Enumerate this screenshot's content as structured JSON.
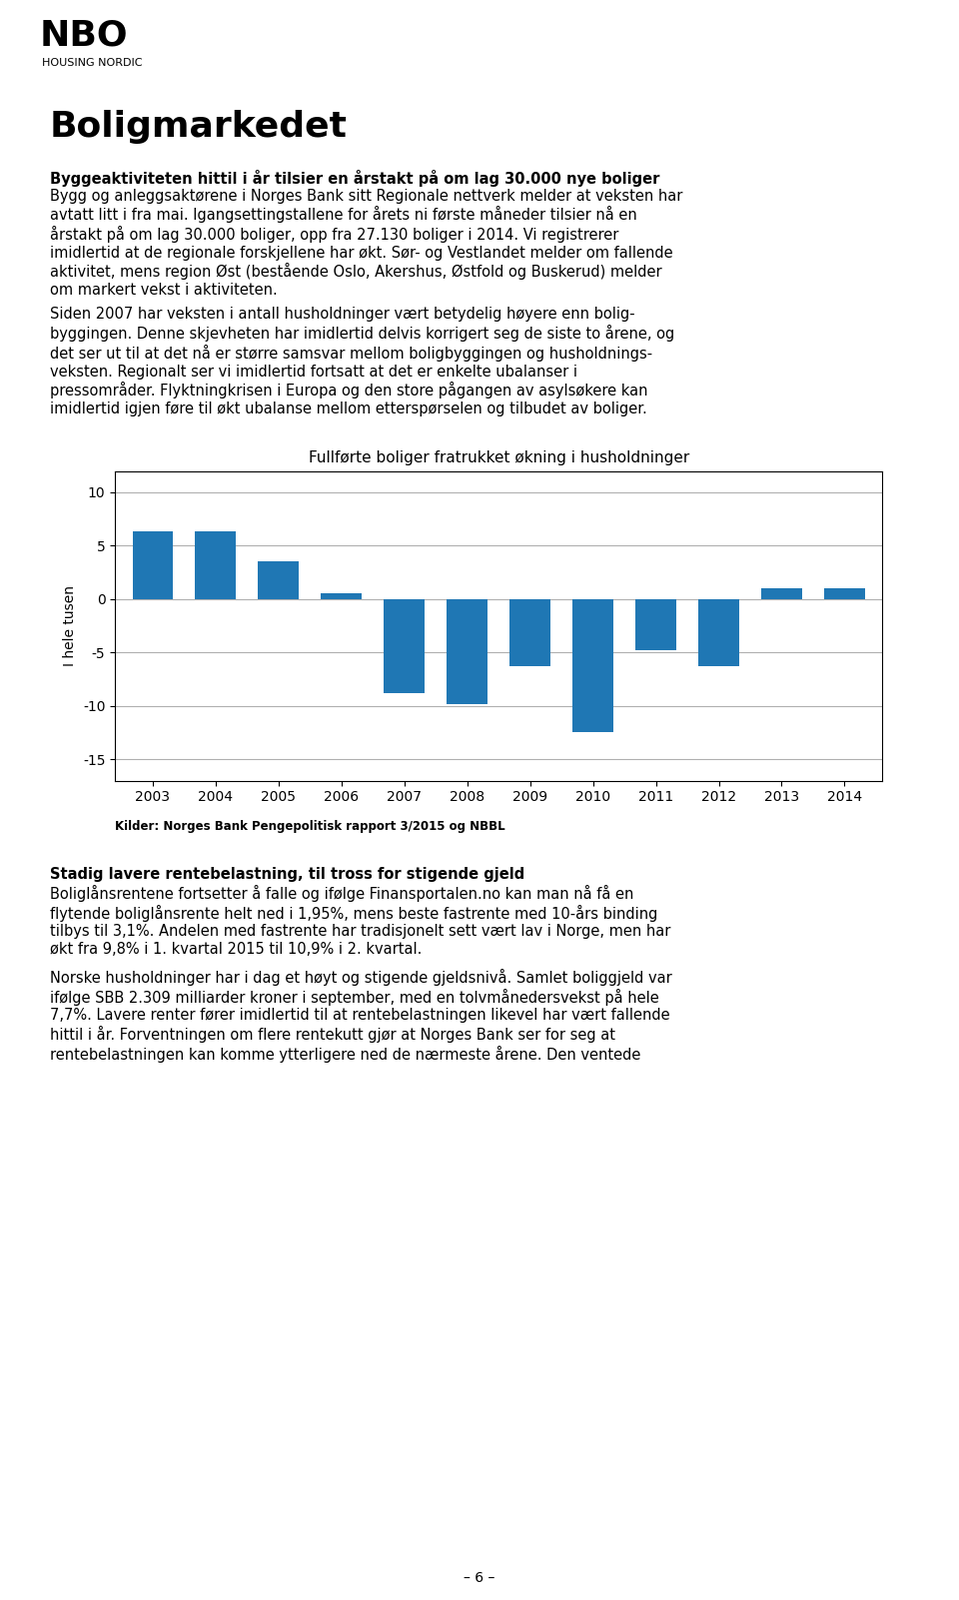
{
  "page": {
    "logo": [
      "NBO",
      "HOUSING NORDIC"
    ],
    "title": "Boligmarkedet",
    "paragraphs": [
      {
        "heading": "Byggeaktiviteten hittil i år tilsier en årstakt på om lag 30.000 nye boliger",
        "text": "Bygg og anleggsaktørene i Norges Bank sitt Regionale nettverk melder at veksten har\navtatt litt i fra mai. Igangsettingstallene for årets ni første måneder tilsier nå en\nårstakt på om lag 30.000 boliger, opp fra 27.130 boliger i 2014. Vi registrerer\nimidlertid at de regionale forskjellene har økt. Sør- og Vestlandet melder om fallende\naktivitet, mens region Øst (bestående Oslo, Akershus, Østfold og Buskerud) melder\nom markert vekst i aktiviteten."
      },
      {
        "text": "Siden 2007 har veksten i antall husholdninger vært betydelig høyere enn bolig-\nbyggingen. Denne skjevheten har imidlertid delvis korrigert seg de siste to årene, og\ndet ser ut til at det nå er større samsvar mellom boligbyggingen og husholdnings-\nveksten. Regionalt ser vi imidlertid fortsatt at det er enkelte ubalanser i\npressområder. Flyktningkrisen i Europa og den store pågangen av asylsøkere kan\nimidlertid igjen føre til økt ubalanse mellom etterspørselen og tilbudet av boliger."
      },
      {
        "heading": "Stadig lavere rentebelastning, til tross for stigende gjeld",
        "text": "Boliglånsrentene fortsetter å falle og ifølge Finansportalen.no kan man nå få en\nflytende boliglånsrente helt ned i 1,95%, mens beste fastrente med 10-års binding\ntilbys til 3,1%. Andelen med fastrente har tradisjonelt sett vært lav i Norge, men har\nøkt fra 9,8% i 1. kvartal 2015 til 10,9% i 2. kvartal."
      },
      {
        "text": "Norske husholdninger har i dag et høyt og stigende gjeldsnivå. Samlet boliggjeld var\nifølge SBB 2.309 milliarder kroner i september, med en tolvmånedersvekst på hele\n7,7%. Lavere renter fører imidlertid til at rentebelastningen likevel har vært fallende\nhittil i år. Forventningen om flere rentekutt gjør at Norges Bank ser for seg at\nrentebelastningen kan komme ytterligere ned de nærmeste årene. Den ventede"
      }
    ],
    "page_number": "– 6 –"
  },
  "chart_data": {
    "type": "bar",
    "title": "Fullførte boliger fratrukket økning i husholdninger",
    "y_label": "I hele tusen",
    "categories": [
      "2003",
      "2004",
      "2005",
      "2006",
      "2007",
      "2008",
      "2009",
      "2010",
      "2011",
      "2012",
      "2013",
      "2014"
    ],
    "values": [
      6.3,
      6.3,
      3.5,
      0.5,
      -8.8,
      -9.8,
      -6.3,
      -12.5,
      -4.8,
      -6.3,
      1.0,
      1.0
    ],
    "ylim": [
      -17,
      12
    ],
    "yticks": [
      10,
      5,
      0,
      -5,
      -10,
      -15
    ],
    "grid": true,
    "annotations": [
      "Kilder: Norges Bank Pengepolitisk rapport 3/2015 og NBBL"
    ]
  }
}
